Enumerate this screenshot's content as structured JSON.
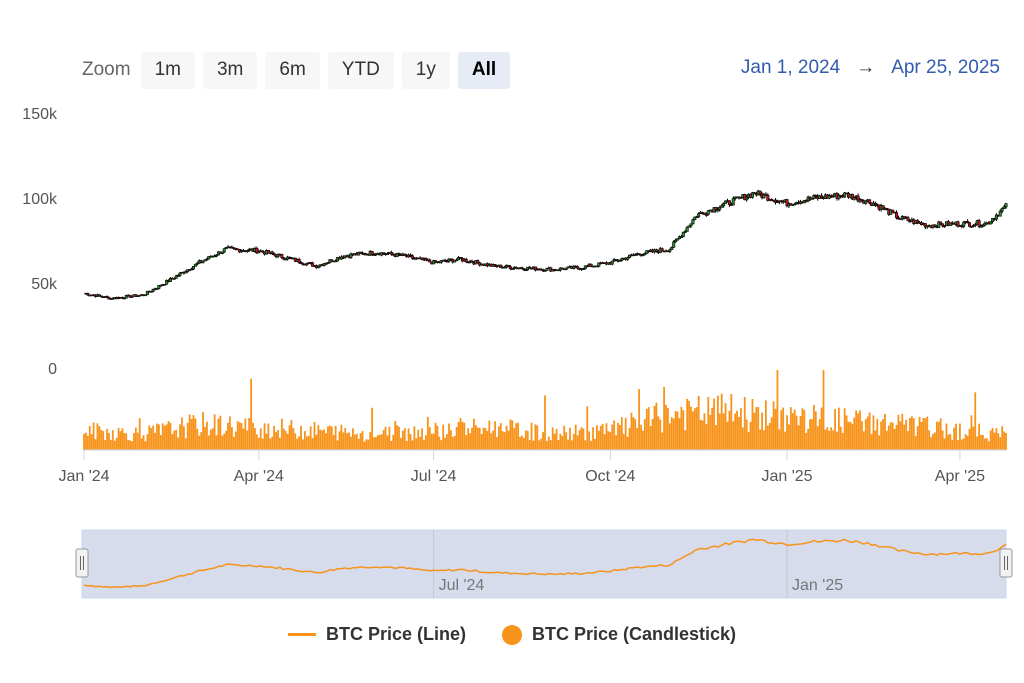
{
  "toolbar": {
    "zoom_label": "Zoom",
    "buttons": [
      "1m",
      "3m",
      "6m",
      "YTD",
      "1y",
      "All"
    ],
    "active": "All"
  },
  "range": {
    "from": "Jan 1, 2024",
    "arrow": "→",
    "to": "Apr 25, 2025"
  },
  "colors": {
    "accent": "#f7931a",
    "up": "#2e8b2e",
    "down": "#c8102e",
    "range_text": "#335cad",
    "navigator_fill": "#d6dcec"
  },
  "legend": [
    {
      "label": "BTC Price (Line)",
      "marker": "line"
    },
    {
      "label": "BTC Price (Candlestick)",
      "marker": "dot"
    }
  ],
  "chart_data": {
    "type": "line",
    "title": "",
    "xlabel": "",
    "ylabel": "",
    "ylim": [
      0,
      150000
    ],
    "y_ticks": [
      "150k",
      "100k",
      "50k",
      "0"
    ],
    "x_ticks": [
      "Jan '24",
      "Apr '24",
      "Jul '24",
      "Oct '24",
      "Jan '25",
      "Apr '25"
    ],
    "navigator_ticks": [
      "Jul '24",
      "Jan '25"
    ],
    "x_range": [
      "2024-01-01",
      "2025-04-25"
    ],
    "series": [
      {
        "name": "BTC Price (Candlestick)",
        "type": "candlestick",
        "x": [
          "2024-01-01",
          "2024-01-15",
          "2024-02-01",
          "2024-02-15",
          "2024-03-01",
          "2024-03-15",
          "2024-04-01",
          "2024-04-15",
          "2024-05-01",
          "2024-05-15",
          "2024-06-01",
          "2024-06-15",
          "2024-07-01",
          "2024-07-15",
          "2024-08-01",
          "2024-08-15",
          "2024-09-01",
          "2024-09-15",
          "2024-10-01",
          "2024-10-15",
          "2024-11-01",
          "2024-11-15",
          "2024-12-01",
          "2024-12-15",
          "2025-01-01",
          "2025-01-15",
          "2025-02-01",
          "2025-02-15",
          "2025-03-01",
          "2025-03-15",
          "2025-04-01",
          "2025-04-15",
          "2025-04-25"
        ],
        "close": [
          44000,
          41000,
          43000,
          52000,
          62000,
          70000,
          69000,
          65000,
          60000,
          66000,
          68000,
          66000,
          62000,
          64000,
          60000,
          59000,
          58000,
          59000,
          62000,
          67000,
          70000,
          90000,
          97000,
          103000,
          97000,
          100000,
          102000,
          97000,
          88000,
          84000,
          85000,
          85000,
          95000
        ]
      },
      {
        "name": "BTC Price (Line)",
        "type": "line",
        "role": "navigator"
      },
      {
        "name": "Volume",
        "type": "column",
        "x": [
          "2024-01-01",
          "2024-02-01",
          "2024-03-01",
          "2024-04-01",
          "2024-05-01",
          "2024-06-01",
          "2024-07-01",
          "2024-08-01",
          "2024-09-01",
          "2024-10-01",
          "2024-11-01",
          "2024-12-01",
          "2025-01-01",
          "2025-02-01",
          "2025-03-01",
          "2025-04-01",
          "2025-04-25"
        ],
        "relative_height": [
          0.3,
          0.25,
          0.4,
          0.35,
          0.3,
          0.25,
          0.3,
          0.35,
          0.25,
          0.3,
          0.55,
          0.6,
          0.5,
          0.45,
          0.4,
          0.3,
          0.25
        ]
      }
    ]
  }
}
